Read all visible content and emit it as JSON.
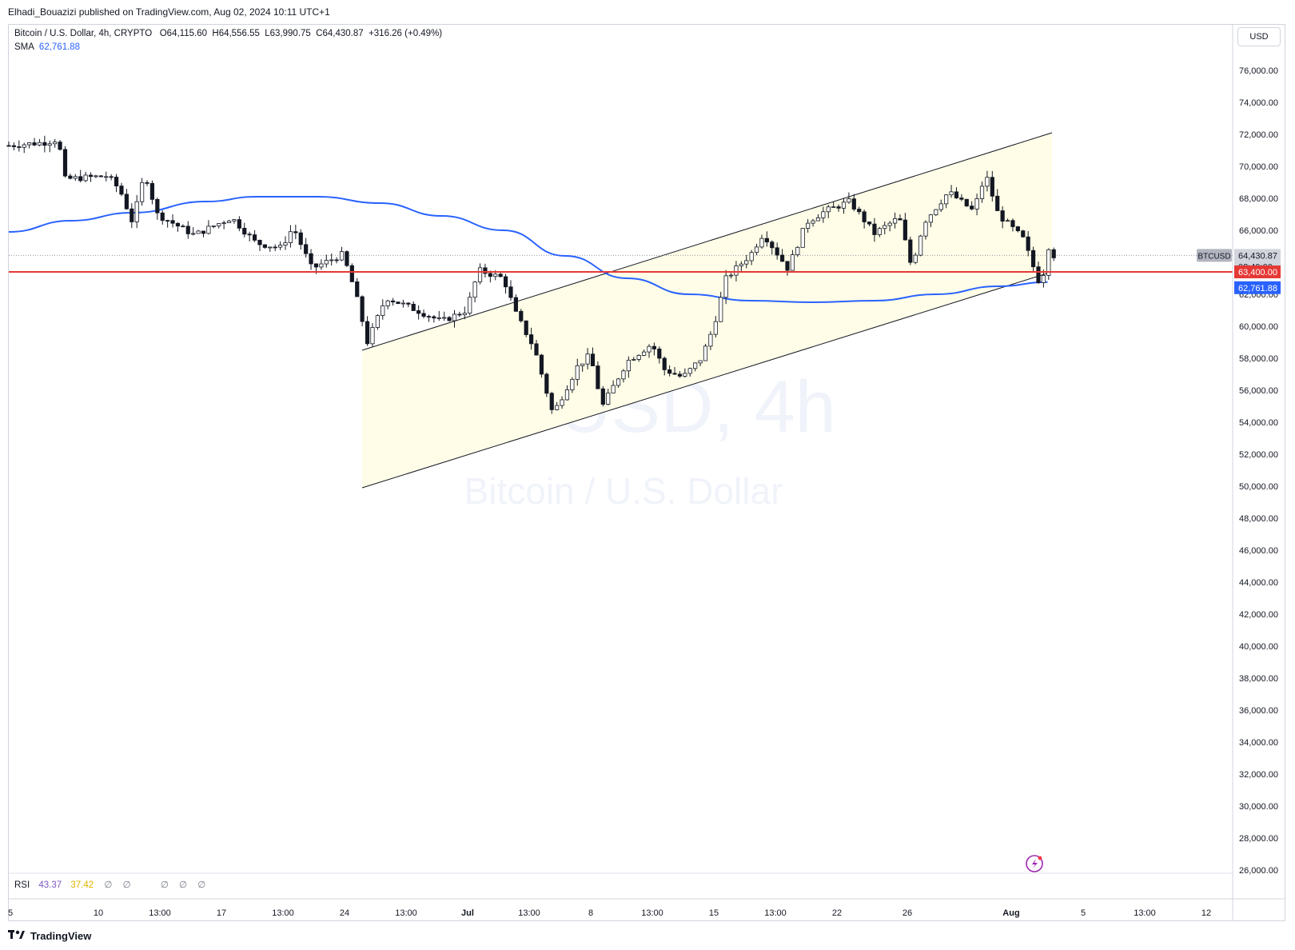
{
  "header": {
    "publisher": "Elhadi_Bouazizi published on TradingView.com, Aug 02, 2024 10:11 UTC+1"
  },
  "legend": {
    "symbol": "Bitcoin / U.S. Dollar, 4h, CRYPTO",
    "open": "O64,115.60",
    "high": "H64,556.55",
    "low": "L63,990.75",
    "close": "C64,430.87",
    "change": "+316.26 (+0.49%)",
    "sma_label": "SMA",
    "sma_value": "62,761.88"
  },
  "currency": "USD",
  "watermark": {
    "symbol": "BTCUSD, 4h",
    "name": "Bitcoin / U.S. Dollar"
  },
  "rsi": {
    "label": "RSI",
    "value1": "43.37",
    "value2": "37.42",
    "null_glyph": "∅"
  },
  "footer": {
    "brand": "TradingView"
  },
  "colors": {
    "up": "#131722",
    "down": "#131722",
    "sma": "#2962ff",
    "hline": "#e53935",
    "channel_fill": "#fffde7",
    "price_label_bg": "#b2b5be"
  },
  "icons": {
    "brand": "tradingview-logo-icon",
    "flash": "lightning-icon"
  },
  "chart_data": {
    "type": "candlestick",
    "timeframe": "4h",
    "ylim": [
      26000,
      78000
    ],
    "y_ticks": [
      "76,000.00",
      "74,000.00",
      "72,000.00",
      "70,000.00",
      "68,000.00",
      "66,000.00",
      "64,000.00",
      "62,000.00",
      "60,000.00",
      "58,000.00",
      "56,000.00",
      "54,000.00",
      "52,000.00",
      "50,000.00",
      "48,000.00",
      "46,000.00",
      "44,000.00",
      "42,000.00",
      "40,000.00",
      "38,000.00",
      "36,000.00",
      "34,000.00",
      "32,000.00",
      "30,000.00",
      "28,000.00",
      "26,000.00"
    ],
    "x_ticks": [
      "5",
      "10",
      "13:00",
      "17",
      "13:00",
      "24",
      "13:00",
      "Jul",
      "13:00",
      "8",
      "13:00",
      "15",
      "13:00",
      "22",
      "26",
      "Aug",
      "5",
      "13:00",
      "12"
    ],
    "last_price": "64,430.87",
    "countdown": "02:49:00",
    "symbol_tag": "BTCUSD",
    "horizontal_level": {
      "value": 63400,
      "label": "63,400.00"
    },
    "sma_last": {
      "value": 62761.88,
      "label": "62,761.88"
    },
    "sma_curve": [
      {
        "t": 0,
        "v": 65900
      },
      {
        "t": 0.05,
        "v": 66600
      },
      {
        "t": 0.1,
        "v": 67100
      },
      {
        "t": 0.16,
        "v": 67800
      },
      {
        "t": 0.2,
        "v": 68100
      },
      {
        "t": 0.25,
        "v": 68100
      },
      {
        "t": 0.3,
        "v": 67700
      },
      {
        "t": 0.35,
        "v": 66900
      },
      {
        "t": 0.4,
        "v": 66000
      },
      {
        "t": 0.45,
        "v": 64400
      },
      {
        "t": 0.5,
        "v": 63000
      },
      {
        "t": 0.55,
        "v": 62000
      },
      {
        "t": 0.6,
        "v": 61600
      },
      {
        "t": 0.65,
        "v": 61500
      },
      {
        "t": 0.7,
        "v": 61600
      },
      {
        "t": 0.75,
        "v": 62000
      },
      {
        "t": 0.8,
        "v": 62500
      },
      {
        "t": 0.84,
        "v": 62761.88
      }
    ],
    "channel": {
      "lower_start": 49900,
      "lower_end": 63400,
      "upper_start": 58500,
      "upper_end": 72100
    },
    "price_path": [
      {
        "t": 0.0,
        "v": 71300
      },
      {
        "t": 0.03,
        "v": 71500
      },
      {
        "t": 0.04,
        "v": 71700
      },
      {
        "t": 0.045,
        "v": 69200
      },
      {
        "t": 0.08,
        "v": 69400
      },
      {
        "t": 0.09,
        "v": 68500
      },
      {
        "t": 0.1,
        "v": 66500
      },
      {
        "t": 0.11,
        "v": 69600
      },
      {
        "t": 0.12,
        "v": 67000
      },
      {
        "t": 0.15,
        "v": 65700
      },
      {
        "t": 0.18,
        "v": 66800
      },
      {
        "t": 0.2,
        "v": 65200
      },
      {
        "t": 0.22,
        "v": 64900
      },
      {
        "t": 0.23,
        "v": 66200
      },
      {
        "t": 0.245,
        "v": 63600
      },
      {
        "t": 0.27,
        "v": 64500
      },
      {
        "t": 0.28,
        "v": 62200
      },
      {
        "t": 0.29,
        "v": 59000
      },
      {
        "t": 0.305,
        "v": 61800
      },
      {
        "t": 0.33,
        "v": 61000
      },
      {
        "t": 0.35,
        "v": 60300
      },
      {
        "t": 0.37,
        "v": 61000
      },
      {
        "t": 0.38,
        "v": 63500
      },
      {
        "t": 0.4,
        "v": 63000
      },
      {
        "t": 0.41,
        "v": 60800
      },
      {
        "t": 0.425,
        "v": 58600
      },
      {
        "t": 0.44,
        "v": 54500
      },
      {
        "t": 0.46,
        "v": 57500
      },
      {
        "t": 0.47,
        "v": 58200
      },
      {
        "t": 0.48,
        "v": 55000
      },
      {
        "t": 0.5,
        "v": 57800
      },
      {
        "t": 0.52,
        "v": 58900
      },
      {
        "t": 0.53,
        "v": 57300
      },
      {
        "t": 0.545,
        "v": 56800
      },
      {
        "t": 0.56,
        "v": 58000
      },
      {
        "t": 0.57,
        "v": 60000
      },
      {
        "t": 0.58,
        "v": 63000
      },
      {
        "t": 0.6,
        "v": 64500
      },
      {
        "t": 0.61,
        "v": 65800
      },
      {
        "t": 0.63,
        "v": 63600
      },
      {
        "t": 0.645,
        "v": 66500
      },
      {
        "t": 0.66,
        "v": 67200
      },
      {
        "t": 0.68,
        "v": 67800
      },
      {
        "t": 0.7,
        "v": 65800
      },
      {
        "t": 0.72,
        "v": 66800
      },
      {
        "t": 0.73,
        "v": 63700
      },
      {
        "t": 0.74,
        "v": 66500
      },
      {
        "t": 0.76,
        "v": 68400
      },
      {
        "t": 0.78,
        "v": 67200
      },
      {
        "t": 0.79,
        "v": 69500
      },
      {
        "t": 0.8,
        "v": 67000
      },
      {
        "t": 0.82,
        "v": 65500
      },
      {
        "t": 0.83,
        "v": 63400
      },
      {
        "t": 0.835,
        "v": 62400
      },
      {
        "t": 0.84,
        "v": 65100
      },
      {
        "t": 0.845,
        "v": 64430.87
      }
    ]
  }
}
